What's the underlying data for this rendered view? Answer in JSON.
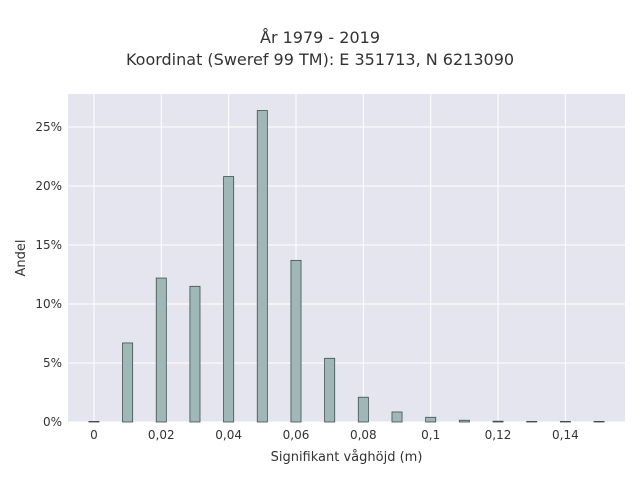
{
  "chart_data": {
    "type": "bar",
    "title_line1": "År 1979 - 2019",
    "title_line2": "Koordinat (Sweref 99 TM): E 351713, N 6213090",
    "xlabel": "Signifikant våghöjd (m)",
    "ylabel": "Andel",
    "x_ticks": [
      {
        "value": 0,
        "label": "0"
      },
      {
        "value": 0.02,
        "label": "0,02"
      },
      {
        "value": 0.04,
        "label": "0,04"
      },
      {
        "value": 0.06,
        "label": "0,06"
      },
      {
        "value": 0.08,
        "label": "0,08"
      },
      {
        "value": 0.1,
        "label": "0,1"
      },
      {
        "value": 0.12,
        "label": "0,12"
      },
      {
        "value": 0.14,
        "label": "0,14"
      }
    ],
    "y_ticks": [
      {
        "value": 0,
        "label": "0%"
      },
      {
        "value": 5,
        "label": "5%"
      },
      {
        "value": 10,
        "label": "10%"
      },
      {
        "value": 15,
        "label": "15%"
      },
      {
        "value": 20,
        "label": "20%"
      },
      {
        "value": 25,
        "label": "25%"
      }
    ],
    "xlim": [
      -0.0077,
      0.1577
    ],
    "ylim": [
      0,
      27.8
    ],
    "bar_width": 0.003,
    "x": [
      0,
      0.01,
      0.02,
      0.03,
      0.04,
      0.05,
      0.06,
      0.07,
      0.08,
      0.09,
      0.1,
      0.11,
      0.12,
      0.13,
      0.14,
      0.15
    ],
    "values": [
      0.05,
      6.7,
      12.2,
      11.5,
      20.8,
      26.4,
      13.7,
      5.4,
      2.1,
      0.85,
      0.4,
      0.15,
      0.07,
      0.05,
      0.05,
      0.03
    ],
    "grid": true,
    "colors": {
      "plot_background": "#e5e5ef",
      "grid": "#ffffff",
      "bar_fill": "#9fb7b7",
      "bar_stroke": "#3f4f4f",
      "text": "#333333"
    }
  }
}
